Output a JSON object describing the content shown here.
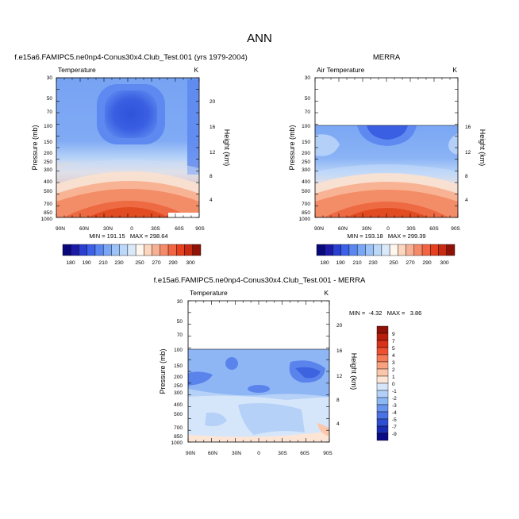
{
  "figure": {
    "title": "ANN"
  },
  "chart_data": [
    {
      "type": "heatmap",
      "title": "f.e15a6.FAMIPC5.ne0np4-Conus30x4.Club_Test.001 (yrs 1979-2004)",
      "variable": "Temperature",
      "units": "K",
      "x_ticks": [
        "90N",
        "60N",
        "30N",
        "0",
        "30S",
        "60S",
        "90S"
      ],
      "y_ticks": [
        "30",
        "50",
        "70",
        "100",
        "150",
        "200",
        "250",
        "300",
        "400",
        "500",
        "700",
        "850",
        "1000"
      ],
      "ylabel": "Pressure (mb)",
      "y2label": "Height (km)",
      "y2_ticks": [
        "20",
        "16",
        "12",
        "8",
        "4"
      ],
      "stats": "MIN = 191.15   MAX = 298.64",
      "min": 191.15,
      "max": 298.64,
      "ylim": [
        1000,
        30
      ]
    },
    {
      "type": "heatmap",
      "title": "MERRA",
      "variable": "Air Temperature",
      "units": "K",
      "x_ticks": [
        "90N",
        "60N",
        "30N",
        "0",
        "30S",
        "60S",
        "90S"
      ],
      "y_ticks": [
        "30",
        "50",
        "70",
        "100",
        "150",
        "200",
        "250",
        "300",
        "400",
        "500",
        "700",
        "850",
        "1000"
      ],
      "ylabel": "Pressure (mb)",
      "y2label": "Height (km)",
      "y2_ticks": [
        "20",
        "16",
        "12",
        "8",
        "4"
      ],
      "stats": "MIN = 193.18   MAX = 299.39",
      "min": 193.18,
      "max": 299.39,
      "ylim": [
        1000,
        30
      ],
      "data_top_mb": 100
    },
    {
      "type": "heatmap",
      "title": "f.e15a6.FAMIPC5.ne0np4-Conus30x4.Club_Test.001 - MERRA",
      "variable": "Temperature",
      "units": "K",
      "x_ticks": [
        "90N",
        "60N",
        "30N",
        "0",
        "30S",
        "60S",
        "90S"
      ],
      "y_ticks": [
        "30",
        "50",
        "70",
        "100",
        "150",
        "200",
        "250",
        "300",
        "400",
        "500",
        "700",
        "850",
        "1000"
      ],
      "ylabel": "Pressure (mb)",
      "y2label": "Height (km)",
      "y2_ticks": [
        "20",
        "16",
        "12",
        "8",
        "4"
      ],
      "stats": "MIN =  -4.32   MAX =   3.86",
      "min": -4.32,
      "max": 3.86,
      "ylim": [
        1000,
        30
      ],
      "data_top_mb": 100
    }
  ],
  "colorbars": {
    "temperature": {
      "labels": [
        "180",
        "190",
        "210",
        "230",
        "250",
        "270",
        "290",
        "300"
      ],
      "colors": [
        "#08087a",
        "#1b1ba8",
        "#2a3fd0",
        "#3c61e6",
        "#5a86f0",
        "#7aa6f6",
        "#9cc2f8",
        "#bcd8f9",
        "#dae9fa",
        "#fff6ee",
        "#fbd5bd",
        "#f8b093",
        "#f58a68",
        "#f06542",
        "#e5401f",
        "#c82a12",
        "#8f1208"
      ]
    },
    "difference": {
      "labels": [
        "9",
        "7",
        "5",
        "4",
        "3",
        "2",
        "1",
        "0",
        "-1",
        "-2",
        "-3",
        "-4",
        "-5",
        "-7",
        "-9"
      ],
      "colors": [
        "#8f1208",
        "#b81e0c",
        "#d8321a",
        "#ed5030",
        "#f57a57",
        "#f8a27f",
        "#fbc6aa",
        "#fde5d6",
        "#d6e6fa",
        "#b3d1f8",
        "#8db6f4",
        "#6994ee",
        "#4a72e4",
        "#2f4fd2",
        "#1a2cb0",
        "#0b0b85"
      ]
    }
  }
}
